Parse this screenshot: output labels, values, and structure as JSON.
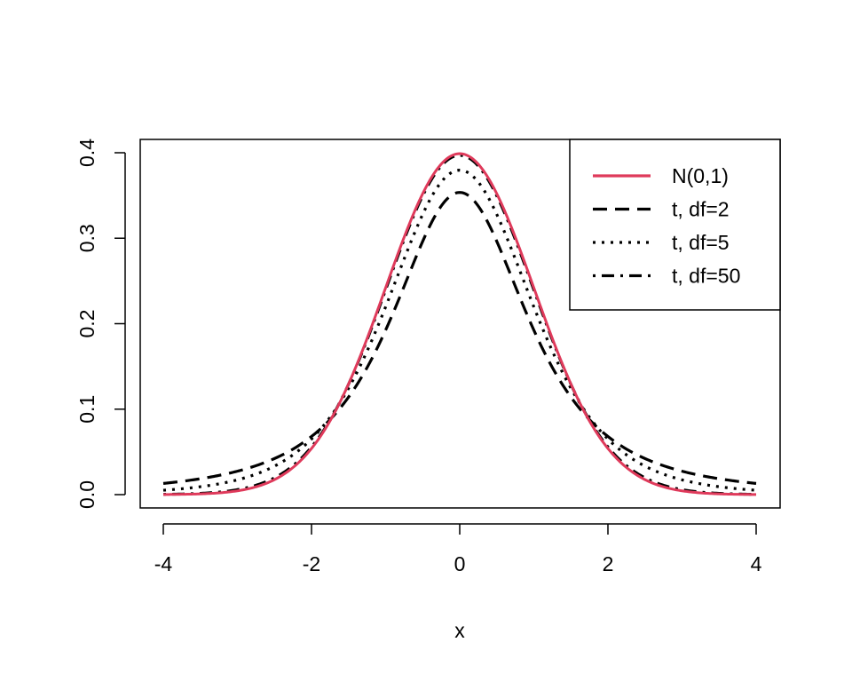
{
  "chart_data": {
    "type": "line",
    "title": "",
    "xlabel": "x",
    "ylabel": "",
    "xlim": [
      -4,
      4
    ],
    "ylim": [
      0,
      0.4
    ],
    "x_ticks": [
      "-4",
      "-2",
      "0",
      "2",
      "4"
    ],
    "y_ticks": [
      "0.0",
      "0.1",
      "0.2",
      "0.3",
      "0.4"
    ],
    "grid": false,
    "legend_position": "top-right",
    "series": [
      {
        "name": "N(0,1)",
        "distribution": "normal",
        "color": "#DF3A5B",
        "style": "solid"
      },
      {
        "name": "t, df=2",
        "distribution": "t",
        "df": 2,
        "color": "#000000",
        "style": "dashed"
      },
      {
        "name": "t, df=5",
        "distribution": "t",
        "df": 5,
        "color": "#000000",
        "style": "dotted"
      },
      {
        "name": "t, df=50",
        "distribution": "t",
        "df": 50,
        "color": "#000000",
        "style": "dotdash"
      }
    ]
  }
}
